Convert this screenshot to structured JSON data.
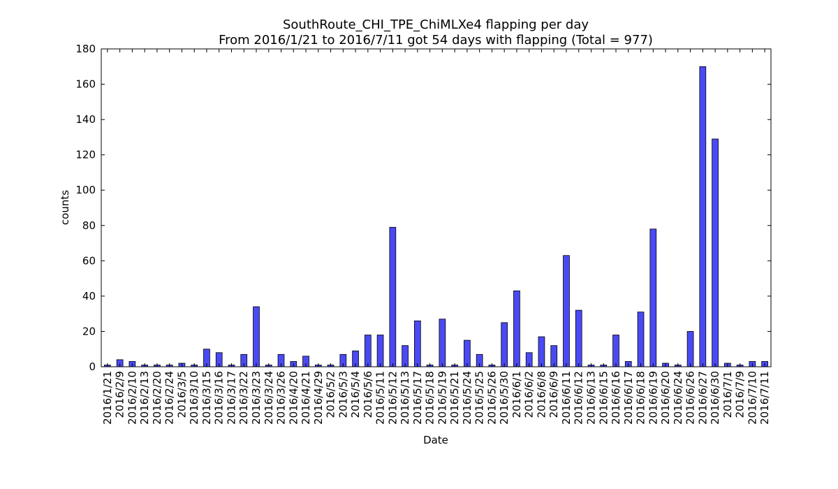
{
  "chart_data": {
    "type": "bar",
    "title": "SouthRoute_CHI_TPE_ChiMLXe4 flapping per day",
    "subtitle": "From 2016/1/21 to 2016/7/11 got 54 days with flapping (Total = 977)",
    "xlabel": "Date",
    "ylabel": "counts",
    "ylim": [
      0,
      180
    ],
    "yticks": [
      0,
      20,
      40,
      60,
      80,
      100,
      120,
      140,
      160,
      180
    ],
    "grid": false,
    "legend": "none",
    "bar_color": "#4a4af4",
    "categories": [
      "2016/1/21",
      "2016/2/9",
      "2016/2/10",
      "2016/2/13",
      "2016/2/20",
      "2016/2/24",
      "2016/3/5",
      "2016/3/10",
      "2016/3/15",
      "2016/3/16",
      "2016/3/17",
      "2016/3/22",
      "2016/3/23",
      "2016/3/24",
      "2016/3/26",
      "2016/4/20",
      "2016/4/21",
      "2016/4/29",
      "2016/5/2",
      "2016/5/3",
      "2016/5/4",
      "2016/5/6",
      "2016/5/11",
      "2016/5/12",
      "2016/5/13",
      "2016/5/17",
      "2016/5/18",
      "2016/5/19",
      "2016/5/21",
      "2016/5/24",
      "2016/5/25",
      "2016/5/26",
      "2016/5/30",
      "2016/6/1",
      "2016/6/2",
      "2016/6/8",
      "2016/6/9",
      "2016/6/11",
      "2016/6/12",
      "2016/6/13",
      "2016/6/15",
      "2016/6/16",
      "2016/6/17",
      "2016/6/18",
      "2016/6/19",
      "2016/6/20",
      "2016/6/24",
      "2016/6/26",
      "2016/6/27",
      "2016/6/30",
      "2016/7/1",
      "2016/7/9",
      "2016/7/10",
      "2016/7/11"
    ],
    "values": [
      1,
      4,
      3,
      1,
      1,
      1,
      2,
      1,
      10,
      8,
      1,
      7,
      34,
      1,
      7,
      3,
      6,
      1,
      1,
      7,
      9,
      18,
      18,
      79,
      12,
      26,
      1,
      27,
      1,
      15,
      7,
      1,
      25,
      43,
      8,
      17,
      12,
      63,
      32,
      1,
      1,
      18,
      3,
      31,
      78,
      2,
      1,
      20,
      170,
      129,
      2,
      1,
      3,
      3
    ]
  }
}
